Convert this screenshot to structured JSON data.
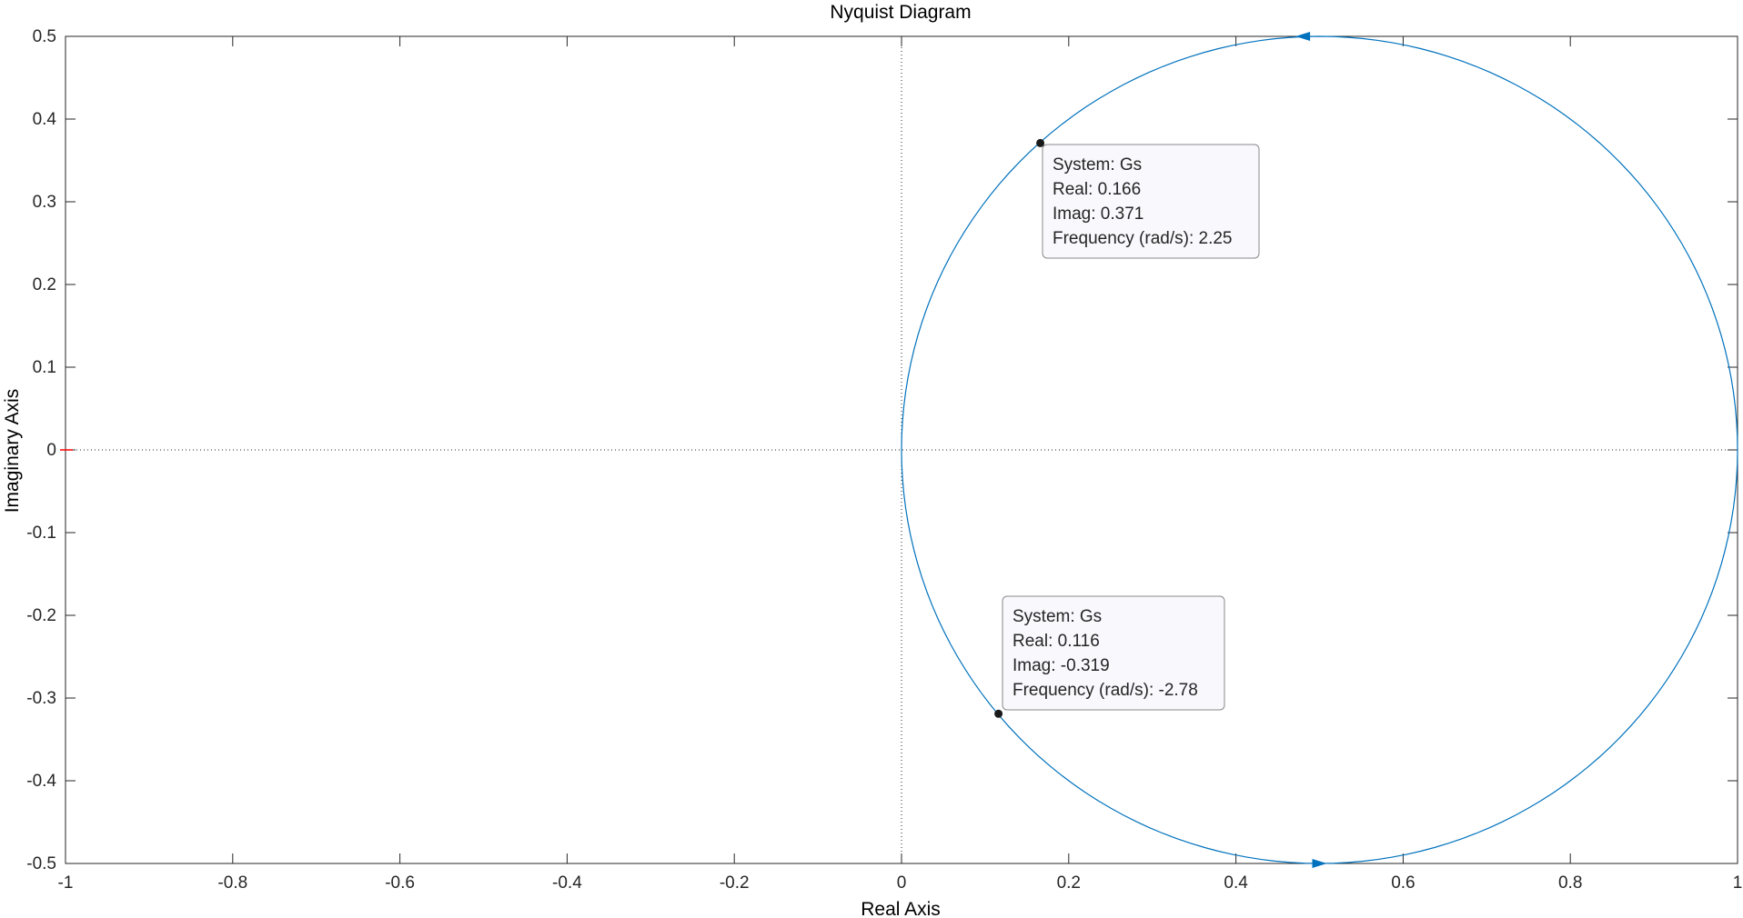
{
  "chart_data": {
    "type": "line",
    "title": "Nyquist Diagram",
    "xlabel": "Real Axis",
    "ylabel": "Imaginary Axis",
    "xlim": [
      -1,
      1
    ],
    "ylim": [
      -0.5,
      0.5
    ],
    "xticks": [
      -1,
      -0.8,
      -0.6,
      -0.4,
      -0.2,
      0,
      0.2,
      0.4,
      0.6,
      0.8,
      1
    ],
    "xtick_labels": [
      "-1",
      "-0.8",
      "-0.6",
      "-0.4",
      "-0.2",
      "0",
      "0.2",
      "0.4",
      "0.6",
      "0.8",
      "1"
    ],
    "yticks": [
      -0.5,
      -0.4,
      -0.3,
      -0.2,
      -0.1,
      0,
      0.1,
      0.2,
      0.3,
      0.4,
      0.5
    ],
    "ytick_labels": [
      "-0.5",
      "-0.4",
      "-0.3",
      "-0.2",
      "-0.1",
      "0",
      "0.1",
      "0.2",
      "0.3",
      "0.4",
      "0.5"
    ],
    "grid": false,
    "series": [
      {
        "name": "Gs",
        "color": "#0072BD",
        "shape": "circle",
        "center": [
          0.5,
          0
        ],
        "radius": 0.5,
        "arrows": [
          {
            "x": 0.48,
            "y": 0.5,
            "direction": "left"
          },
          {
            "x": 0.5,
            "y": -0.5,
            "direction": "right"
          }
        ]
      }
    ],
    "critical_point": {
      "x": -1,
      "y": 0,
      "color": "#FF0000"
    },
    "datatips": [
      {
        "x": 0.166,
        "y": 0.371,
        "lines": [
          "System: Gs",
          "Real: 0.166",
          "Imag: 0.371",
          "Frequency (rad/s): 2.25"
        ]
      },
      {
        "x": 0.116,
        "y": -0.319,
        "lines": [
          "System: Gs",
          "Real: 0.116",
          "Imag: -0.319",
          "Frequency (rad/s): -2.78"
        ]
      }
    ]
  }
}
